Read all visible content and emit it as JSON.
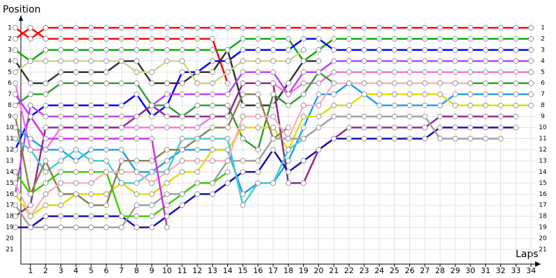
{
  "chart_data": {
    "type": "line",
    "title": "Position",
    "x_label": "Laps",
    "x": [
      0,
      1,
      2,
      3,
      4,
      5,
      6,
      7,
      8,
      9,
      10,
      11,
      12,
      13,
      14,
      15,
      16,
      17,
      18,
      19,
      20,
      21,
      22,
      23,
      24,
      25,
      26,
      27,
      28,
      29,
      30,
      31,
      32,
      33,
      34
    ],
    "xlim": [
      0,
      34.5
    ],
    "xticks": [
      1,
      2,
      3,
      4,
      5,
      6,
      7,
      8,
      9,
      10,
      11,
      12,
      13,
      14,
      15,
      16,
      17,
      18,
      19,
      20,
      21,
      22,
      23,
      24,
      25,
      26,
      27,
      28,
      29,
      30,
      31,
      32,
      33,
      34
    ],
    "ylim": [
      22,
      0
    ],
    "yticks": [
      1,
      2,
      3,
      4,
      5,
      6,
      7,
      8,
      9,
      10,
      11,
      12,
      13,
      14,
      15,
      16,
      17,
      18,
      19,
      20,
      21
    ],
    "grid": true,
    "series": [
      {
        "color": "#ff0000",
        "values": [
          1,
          2,
          1,
          1,
          1,
          1,
          1,
          1,
          1,
          1,
          1,
          1,
          1,
          1,
          1,
          1,
          1,
          1,
          1,
          1,
          1,
          1,
          1,
          1,
          1,
          1,
          1,
          1,
          1,
          1,
          1,
          1,
          1,
          1,
          1
        ]
      },
      {
        "color": "#ff0000",
        "values": [
          2,
          1,
          2,
          2,
          2,
          2,
          2,
          2,
          2,
          2,
          2,
          2,
          2,
          2,
          6,
          null,
          null,
          null,
          null,
          null,
          null,
          null,
          null,
          null,
          null,
          null,
          null,
          null,
          null,
          null,
          null,
          null,
          null,
          null,
          null
        ]
      },
      {
        "color": "#00b000",
        "values": [
          3,
          4,
          3,
          3,
          3,
          3,
          3,
          3,
          3,
          3,
          3,
          3,
          3,
          3,
          3,
          2,
          2,
          2,
          2,
          4,
          3,
          2,
          2,
          2,
          2,
          2,
          2,
          2,
          2,
          2,
          2,
          2,
          2,
          2,
          2
        ]
      },
      {
        "color": "#0000ff",
        "values": [
          12,
          9,
          8,
          8,
          8,
          8,
          8,
          8,
          7,
          9,
          8,
          5,
          5,
          4,
          4,
          3,
          3,
          3,
          3,
          2,
          2,
          3,
          3,
          3,
          3,
          3,
          3,
          3,
          3,
          3,
          3,
          3,
          3,
          3,
          3
        ]
      },
      {
        "color": "#333333",
        "values": [
          4,
          6,
          6,
          5,
          5,
          5,
          5,
          4,
          4,
          6,
          6,
          6,
          5,
          5,
          3,
          8,
          8,
          8,
          6,
          4,
          4,
          null,
          null,
          null,
          null,
          null,
          null,
          null,
          null,
          null,
          null,
          null,
          null,
          null,
          null
        ]
      },
      {
        "color": "#c8d890",
        "values": [
          5,
          4,
          4,
          4,
          4,
          4,
          4,
          4,
          5,
          5,
          4,
          4,
          6,
          6,
          5,
          4,
          4,
          4,
          4,
          3,
          null,
          null,
          null,
          null,
          null,
          null,
          null,
          null,
          null,
          null,
          null,
          null,
          null,
          null,
          null
        ]
      },
      {
        "color": "#c040ff",
        "values": [
          16,
          8,
          9,
          9,
          9,
          9,
          9,
          9,
          9,
          8,
          7,
          7,
          7,
          7,
          7,
          5,
          5,
          5,
          7,
          5,
          5,
          4,
          4,
          4,
          4,
          4,
          4,
          4,
          4,
          4,
          4,
          4,
          4,
          4,
          4
        ]
      },
      {
        "color": "#ff70e0",
        "values": [
          6,
          12,
          12,
          10,
          10,
          10,
          10,
          10,
          10,
          10,
          10,
          10,
          10,
          9,
          9,
          6,
          6,
          6,
          7,
          6,
          6,
          5,
          5,
          5,
          5,
          5,
          5,
          5,
          5,
          5,
          5,
          5,
          5,
          5,
          5
        ]
      },
      {
        "color": "#30a030",
        "values": [
          8,
          7,
          7,
          6,
          6,
          6,
          6,
          6,
          6,
          8,
          8,
          9,
          8,
          8,
          8,
          11,
          12,
          7,
          8,
          7,
          5,
          6,
          6,
          6,
          6,
          6,
          6,
          6,
          6,
          6,
          6,
          6,
          6,
          6,
          6
        ]
      },
      {
        "color": "#20a0f0",
        "values": [
          10,
          11,
          12,
          12,
          13,
          12,
          12,
          12,
          14,
          14,
          13,
          12,
          12,
          12,
          12,
          16,
          15,
          15,
          13,
          10,
          7,
          7,
          6,
          7,
          8,
          8,
          8,
          8,
          8,
          7,
          7,
          7,
          7,
          7,
          7
        ]
      },
      {
        "color": "#e0e000",
        "values": [
          16,
          18,
          17,
          17,
          16,
          16,
          16,
          15,
          16,
          16,
          15,
          14,
          14,
          12,
          12,
          10,
          10,
          10,
          12,
          9,
          9,
          8,
          8,
          7,
          7,
          7,
          7,
          7,
          7,
          8,
          8,
          8,
          8,
          8,
          8
        ]
      },
      {
        "color": "#902890",
        "values": [
          18,
          17,
          10,
          10,
          10,
          10,
          10,
          10,
          9,
          8,
          9,
          9,
          9,
          9,
          9,
          6,
          6,
          6,
          15,
          15,
          12,
          11,
          10,
          10,
          10,
          10,
          10,
          10,
          9,
          9,
          9,
          9,
          9,
          9,
          null
        ]
      },
      {
        "color": "#1010b0",
        "values": [
          19,
          19,
          18,
          18,
          18,
          18,
          18,
          18,
          19,
          19,
          18,
          17,
          16,
          16,
          15,
          14,
          14,
          12,
          14,
          13,
          12,
          11,
          11,
          11,
          11,
          11,
          11,
          11,
          10,
          10,
          10,
          10,
          10,
          10,
          null
        ]
      },
      {
        "color": "#a0a0a0",
        "values": [
          17,
          19,
          19,
          19,
          19,
          19,
          19,
          19,
          17,
          17,
          16,
          16,
          15,
          15,
          13,
          13,
          13,
          11,
          11,
          11,
          10,
          9,
          9,
          9,
          9,
          9,
          9,
          9,
          11,
          11,
          11,
          11,
          11,
          null,
          null
        ]
      },
      {
        "color": "#40d000",
        "values": [
          14,
          16,
          15,
          14,
          14,
          14,
          14,
          18,
          18,
          18,
          17,
          16,
          15,
          15,
          14,
          null,
          null,
          null,
          null,
          null,
          null,
          null,
          null,
          null,
          null,
          null,
          null,
          null,
          null,
          null,
          null,
          null,
          null,
          null,
          null
        ]
      },
      {
        "color": "#40d0d0",
        "values": [
          11,
          12,
          14,
          13,
          12,
          13,
          13,
          15,
          15,
          14,
          14,
          11,
          11,
          11,
          11,
          17,
          15,
          15,
          12,
          11,
          null,
          null,
          null,
          null,
          null,
          null,
          null,
          null,
          null,
          null,
          null,
          null,
          null,
          null,
          null
        ]
      },
      {
        "color": "#908050",
        "values": [
          9,
          16,
          13,
          16,
          16,
          17,
          17,
          13,
          13,
          13,
          12,
          12,
          11,
          10,
          10,
          7,
          7,
          11,
          10,
          null,
          null,
          null,
          null,
          null,
          null,
          null,
          null,
          null,
          null,
          null,
          null,
          null,
          null,
          null,
          null
        ]
      },
      {
        "color": "#ffb0c0",
        "values": [
          15,
          18,
          16,
          15,
          15,
          15,
          14,
          14,
          14,
          15,
          14,
          13,
          13,
          13,
          13,
          9,
          9,
          9,
          11,
          8,
          8,
          6,
          6,
          6,
          6,
          6,
          6,
          6,
          6,
          6,
          6,
          null,
          null,
          null,
          null
        ]
      },
      {
        "color": "#d030f0",
        "values": [
          7,
          9,
          11,
          11,
          11,
          11,
          11,
          11,
          11,
          11,
          19,
          null,
          null,
          null,
          null,
          null,
          null,
          null,
          null,
          null,
          null,
          null,
          null,
          null,
          null,
          null,
          null,
          null,
          null,
          null,
          null,
          null,
          null,
          null,
          null
        ]
      }
    ]
  }
}
